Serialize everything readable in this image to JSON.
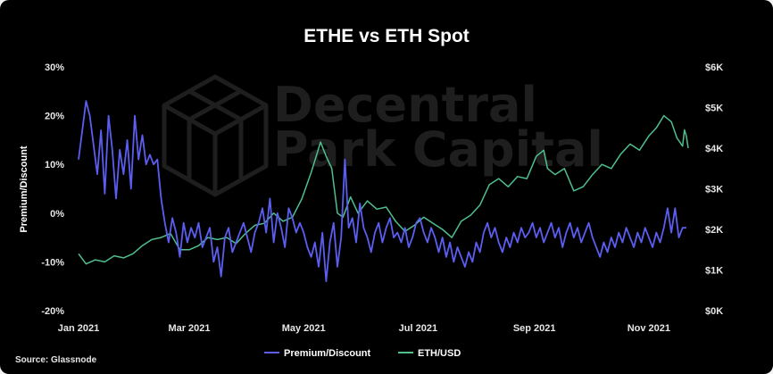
{
  "chart_data": {
    "type": "line",
    "title": "ETHE vs ETH Spot",
    "ylabel": "Premium/Discount",
    "y2label": "",
    "xlabel": "",
    "xlim": [
      "2021-01-01",
      "2021-11-22"
    ],
    "ylim": [
      -20,
      30
    ],
    "y2lim": [
      0,
      6000
    ],
    "x_ticks": [
      {
        "date": "2021-01-01",
        "label": "Jan 2021"
      },
      {
        "date": "2021-03-01",
        "label": "Mar 2021"
      },
      {
        "date": "2021-05-01",
        "label": "May 2021"
      },
      {
        "date": "2021-07-01",
        "label": "Jul 2021"
      },
      {
        "date": "2021-09-01",
        "label": "Sep 2021"
      },
      {
        "date": "2021-11-01",
        "label": "Nov 2021"
      }
    ],
    "y_ticks": [
      {
        "value": 30,
        "label": "30%"
      },
      {
        "value": 20,
        "label": "20%"
      },
      {
        "value": 10,
        "label": "10%"
      },
      {
        "value": 0,
        "label": "0%"
      },
      {
        "value": -10,
        "label": "-10%"
      },
      {
        "value": -20,
        "label": "-20%"
      }
    ],
    "y2_ticks": [
      {
        "value": 6000,
        "label": "$6K"
      },
      {
        "value": 5000,
        "label": "$5K"
      },
      {
        "value": 4000,
        "label": "$4K"
      },
      {
        "value": 3000,
        "label": "$3K"
      },
      {
        "value": 2000,
        "label": "$2K"
      },
      {
        "value": 1000,
        "label": "$1K"
      },
      {
        "value": 0,
        "label": "$0K"
      }
    ],
    "grid": false,
    "legend_position": "bottom-center",
    "series": [
      {
        "name": "Premium/Discount",
        "axis": "left",
        "color": "#5b5ef0",
        "points": [
          [
            "2021-01-01",
            11
          ],
          [
            "2021-01-03",
            17
          ],
          [
            "2021-01-05",
            23
          ],
          [
            "2021-01-07",
            20
          ],
          [
            "2021-01-09",
            14
          ],
          [
            "2021-01-11",
            8
          ],
          [
            "2021-01-13",
            17
          ],
          [
            "2021-01-15",
            4
          ],
          [
            "2021-01-17",
            20
          ],
          [
            "2021-01-19",
            13
          ],
          [
            "2021-01-21",
            3
          ],
          [
            "2021-01-23",
            13
          ],
          [
            "2021-01-25",
            8
          ],
          [
            "2021-01-27",
            15
          ],
          [
            "2021-01-29",
            5
          ],
          [
            "2021-01-31",
            20
          ],
          [
            "2021-02-02",
            11
          ],
          [
            "2021-02-04",
            16
          ],
          [
            "2021-02-06",
            10
          ],
          [
            "2021-02-08",
            12
          ],
          [
            "2021-02-10",
            10
          ],
          [
            "2021-02-12",
            11
          ],
          [
            "2021-02-14",
            3
          ],
          [
            "2021-02-16",
            -2
          ],
          [
            "2021-02-18",
            -6
          ],
          [
            "2021-02-20",
            -1
          ],
          [
            "2021-02-22",
            -4
          ],
          [
            "2021-02-24",
            -9
          ],
          [
            "2021-02-26",
            -2
          ],
          [
            "2021-02-28",
            -6
          ],
          [
            "2021-03-02",
            -3
          ],
          [
            "2021-03-04",
            -5
          ],
          [
            "2021-03-06",
            -2
          ],
          [
            "2021-03-08",
            -7
          ],
          [
            "2021-03-10",
            -5
          ],
          [
            "2021-03-12",
            -3
          ],
          [
            "2021-03-14",
            -10
          ],
          [
            "2021-03-16",
            -7
          ],
          [
            "2021-03-18",
            -13
          ],
          [
            "2021-03-20",
            -5
          ],
          [
            "2021-03-22",
            -3
          ],
          [
            "2021-03-24",
            -8
          ],
          [
            "2021-03-26",
            -6
          ],
          [
            "2021-03-28",
            -4
          ],
          [
            "2021-03-30",
            -2
          ],
          [
            "2021-04-01",
            -5
          ],
          [
            "2021-04-03",
            -8
          ],
          [
            "2021-04-05",
            -4
          ],
          [
            "2021-04-07",
            -2
          ],
          [
            "2021-04-09",
            1
          ],
          [
            "2021-04-11",
            -4
          ],
          [
            "2021-04-13",
            3
          ],
          [
            "2021-04-15",
            -6
          ],
          [
            "2021-04-17",
            0
          ],
          [
            "2021-04-19",
            -3
          ],
          [
            "2021-04-21",
            -7
          ],
          [
            "2021-04-23",
            1
          ],
          [
            "2021-04-25",
            -1
          ],
          [
            "2021-04-27",
            -4
          ],
          [
            "2021-04-29",
            -2
          ],
          [
            "2021-05-01",
            -4
          ],
          [
            "2021-05-03",
            -7
          ],
          [
            "2021-05-05",
            -9
          ],
          [
            "2021-05-07",
            -6
          ],
          [
            "2021-05-09",
            -11
          ],
          [
            "2021-05-11",
            -4
          ],
          [
            "2021-05-13",
            -14
          ],
          [
            "2021-05-15",
            -6
          ],
          [
            "2021-05-17",
            -2
          ],
          [
            "2021-05-19",
            -11
          ],
          [
            "2021-05-21",
            -5
          ],
          [
            "2021-05-23",
            11
          ],
          [
            "2021-05-25",
            -3
          ],
          [
            "2021-05-27",
            -1
          ],
          [
            "2021-05-29",
            -6
          ],
          [
            "2021-05-31",
            2
          ],
          [
            "2021-06-02",
            -3
          ],
          [
            "2021-06-04",
            -5
          ],
          [
            "2021-06-06",
            -8
          ],
          [
            "2021-06-08",
            -4
          ],
          [
            "2021-06-10",
            -2
          ],
          [
            "2021-06-12",
            -6
          ],
          [
            "2021-06-14",
            -3
          ],
          [
            "2021-06-16",
            -1
          ],
          [
            "2021-06-18",
            -5
          ],
          [
            "2021-06-20",
            -4
          ],
          [
            "2021-06-22",
            -6
          ],
          [
            "2021-06-24",
            -3
          ],
          [
            "2021-06-26",
            -7
          ],
          [
            "2021-06-28",
            -5
          ],
          [
            "2021-06-30",
            -2
          ],
          [
            "2021-07-02",
            -1
          ],
          [
            "2021-07-04",
            -4
          ],
          [
            "2021-07-06",
            -6
          ],
          [
            "2021-07-08",
            -3
          ],
          [
            "2021-07-10",
            -5
          ],
          [
            "2021-07-12",
            -8
          ],
          [
            "2021-07-14",
            -5
          ],
          [
            "2021-07-16",
            -9
          ],
          [
            "2021-07-18",
            -6
          ],
          [
            "2021-07-20",
            -10
          ],
          [
            "2021-07-22",
            -7
          ],
          [
            "2021-07-24",
            -9
          ],
          [
            "2021-07-26",
            -11
          ],
          [
            "2021-07-28",
            -8
          ],
          [
            "2021-07-30",
            -10
          ],
          [
            "2021-08-01",
            -6
          ],
          [
            "2021-08-03",
            -8
          ],
          [
            "2021-08-05",
            -4
          ],
          [
            "2021-08-07",
            -2
          ],
          [
            "2021-08-09",
            -5
          ],
          [
            "2021-08-11",
            -3
          ],
          [
            "2021-08-13",
            -6
          ],
          [
            "2021-08-15",
            -8
          ],
          [
            "2021-08-17",
            -5
          ],
          [
            "2021-08-19",
            -7
          ],
          [
            "2021-08-21",
            -4
          ],
          [
            "2021-08-23",
            -6
          ],
          [
            "2021-08-25",
            -3
          ],
          [
            "2021-08-27",
            -5
          ],
          [
            "2021-08-29",
            -4
          ],
          [
            "2021-08-31",
            -2
          ],
          [
            "2021-09-02",
            -5
          ],
          [
            "2021-09-04",
            -3
          ],
          [
            "2021-09-06",
            -6
          ],
          [
            "2021-09-08",
            -4
          ],
          [
            "2021-09-10",
            -2
          ],
          [
            "2021-09-12",
            -5
          ],
          [
            "2021-09-14",
            -3
          ],
          [
            "2021-09-16",
            -7
          ],
          [
            "2021-09-18",
            -4
          ],
          [
            "2021-09-20",
            -2
          ],
          [
            "2021-09-22",
            -5
          ],
          [
            "2021-09-24",
            -3
          ],
          [
            "2021-09-26",
            -6
          ],
          [
            "2021-09-28",
            -4
          ],
          [
            "2021-09-30",
            -2
          ],
          [
            "2021-10-02",
            -5
          ],
          [
            "2021-10-04",
            -7
          ],
          [
            "2021-10-06",
            -9
          ],
          [
            "2021-10-08",
            -6
          ],
          [
            "2021-10-10",
            -8
          ],
          [
            "2021-10-12",
            -5
          ],
          [
            "2021-10-14",
            -7
          ],
          [
            "2021-10-16",
            -4
          ],
          [
            "2021-10-18",
            -6
          ],
          [
            "2021-10-20",
            -3
          ],
          [
            "2021-10-22",
            -5
          ],
          [
            "2021-10-24",
            -7
          ],
          [
            "2021-10-26",
            -4
          ],
          [
            "2021-10-28",
            -6
          ],
          [
            "2021-10-30",
            -3
          ],
          [
            "2021-11-01",
            -5
          ],
          [
            "2021-11-03",
            -7
          ],
          [
            "2021-11-05",
            -4
          ],
          [
            "2021-11-07",
            -6
          ],
          [
            "2021-11-09",
            -3
          ],
          [
            "2021-11-11",
            1
          ],
          [
            "2021-11-13",
            -4
          ],
          [
            "2021-11-15",
            1
          ],
          [
            "2021-11-17",
            -5
          ],
          [
            "2021-11-19",
            -3
          ],
          [
            "2021-11-21",
            -3
          ]
        ]
      },
      {
        "name": "ETH/USD",
        "axis": "right",
        "color": "#4fbf8e",
        "points": [
          [
            "2021-01-01",
            1400
          ],
          [
            "2021-01-05",
            1150
          ],
          [
            "2021-01-10",
            1250
          ],
          [
            "2021-01-15",
            1200
          ],
          [
            "2021-01-20",
            1350
          ],
          [
            "2021-01-25",
            1300
          ],
          [
            "2021-01-30",
            1400
          ],
          [
            "2021-02-04",
            1600
          ],
          [
            "2021-02-09",
            1750
          ],
          [
            "2021-02-14",
            1800
          ],
          [
            "2021-02-19",
            1900
          ],
          [
            "2021-02-24",
            1500
          ],
          [
            "2021-03-01",
            1500
          ],
          [
            "2021-03-06",
            1600
          ],
          [
            "2021-03-11",
            1800
          ],
          [
            "2021-03-16",
            1750
          ],
          [
            "2021-03-21",
            1800
          ],
          [
            "2021-03-26",
            1650
          ],
          [
            "2021-03-31",
            1900
          ],
          [
            "2021-04-05",
            2100
          ],
          [
            "2021-04-10",
            2150
          ],
          [
            "2021-04-15",
            2400
          ],
          [
            "2021-04-20",
            2200
          ],
          [
            "2021-04-25",
            2300
          ],
          [
            "2021-04-30",
            2750
          ],
          [
            "2021-05-05",
            3400
          ],
          [
            "2021-05-10",
            4150
          ],
          [
            "2021-05-13",
            3800
          ],
          [
            "2021-05-16",
            3500
          ],
          [
            "2021-05-19",
            2400
          ],
          [
            "2021-05-22",
            2300
          ],
          [
            "2021-05-26",
            2800
          ],
          [
            "2021-05-30",
            2400
          ],
          [
            "2021-06-04",
            2700
          ],
          [
            "2021-06-09",
            2500
          ],
          [
            "2021-06-14",
            2550
          ],
          [
            "2021-06-19",
            2200
          ],
          [
            "2021-06-24",
            1950
          ],
          [
            "2021-06-29",
            2100
          ],
          [
            "2021-07-04",
            2300
          ],
          [
            "2021-07-09",
            2150
          ],
          [
            "2021-07-14",
            2000
          ],
          [
            "2021-07-19",
            1800
          ],
          [
            "2021-07-24",
            2200
          ],
          [
            "2021-07-29",
            2350
          ],
          [
            "2021-08-03",
            2600
          ],
          [
            "2021-08-08",
            3100
          ],
          [
            "2021-08-13",
            3250
          ],
          [
            "2021-08-18",
            3050
          ],
          [
            "2021-08-23",
            3300
          ],
          [
            "2021-08-28",
            3250
          ],
          [
            "2021-09-02",
            3800
          ],
          [
            "2021-09-06",
            3950
          ],
          [
            "2021-09-08",
            3500
          ],
          [
            "2021-09-12",
            3350
          ],
          [
            "2021-09-17",
            3500
          ],
          [
            "2021-09-22",
            2950
          ],
          [
            "2021-09-27",
            3050
          ],
          [
            "2021-10-02",
            3350
          ],
          [
            "2021-10-07",
            3600
          ],
          [
            "2021-10-12",
            3500
          ],
          [
            "2021-10-17",
            3850
          ],
          [
            "2021-10-22",
            4100
          ],
          [
            "2021-10-27",
            3950
          ],
          [
            "2021-11-01",
            4300
          ],
          [
            "2021-11-05",
            4500
          ],
          [
            "2021-11-09",
            4800
          ],
          [
            "2021-11-13",
            4650
          ],
          [
            "2021-11-16",
            4250
          ],
          [
            "2021-11-19",
            4050
          ],
          [
            "2021-11-20",
            4450
          ],
          [
            "2021-11-21",
            4300
          ],
          [
            "2021-11-22",
            4000
          ]
        ]
      }
    ]
  },
  "watermark": {
    "line1": "Decentral",
    "line2": "Park Capital",
    "logo_icon": "cube-logo-icon"
  },
  "source": "Source: Glassnode"
}
